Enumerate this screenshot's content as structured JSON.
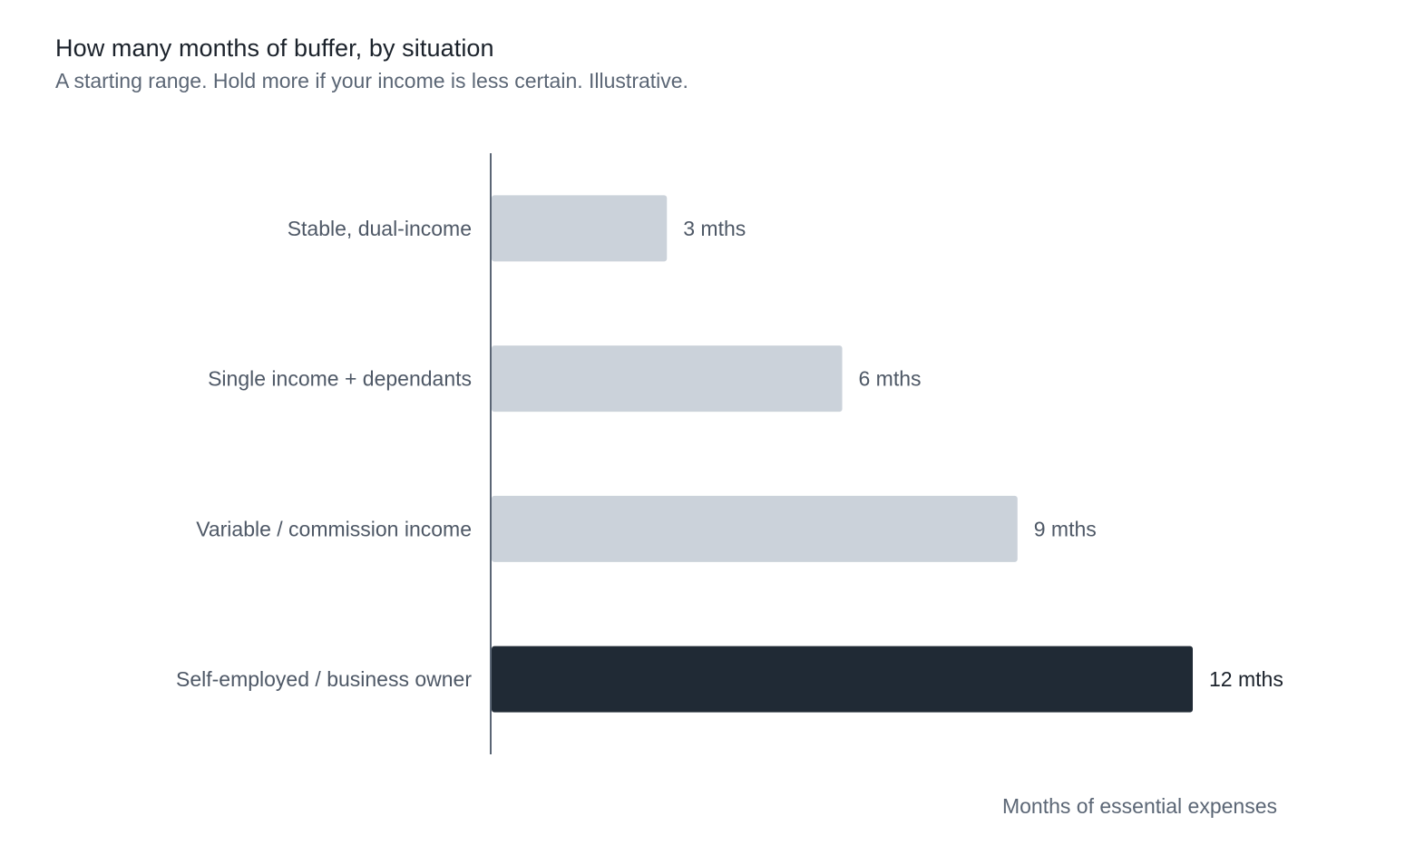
{
  "chart_data": {
    "type": "bar",
    "orientation": "horizontal",
    "title": "How many months of buffer, by situation",
    "subtitle": "A starting range. Hold more if your income is less certain. Illustrative.",
    "xlabel": "Months of essential expenses",
    "ylabel": "",
    "categories": [
      "Stable, dual-income",
      "Single income + dependants",
      "Variable / commission income",
      "Self-employed / business owner"
    ],
    "values": [
      3,
      6,
      9,
      12
    ],
    "value_labels": [
      "3 mths",
      "6 mths",
      "9 mths",
      "12 mths"
    ],
    "xlim": [
      0,
      12
    ],
    "grid": false,
    "legend": "none",
    "highlight_index": 3,
    "colors": {
      "bar": "#cbd2da",
      "highlight_bar": "#202a35",
      "axis": "#5b6675"
    }
  }
}
